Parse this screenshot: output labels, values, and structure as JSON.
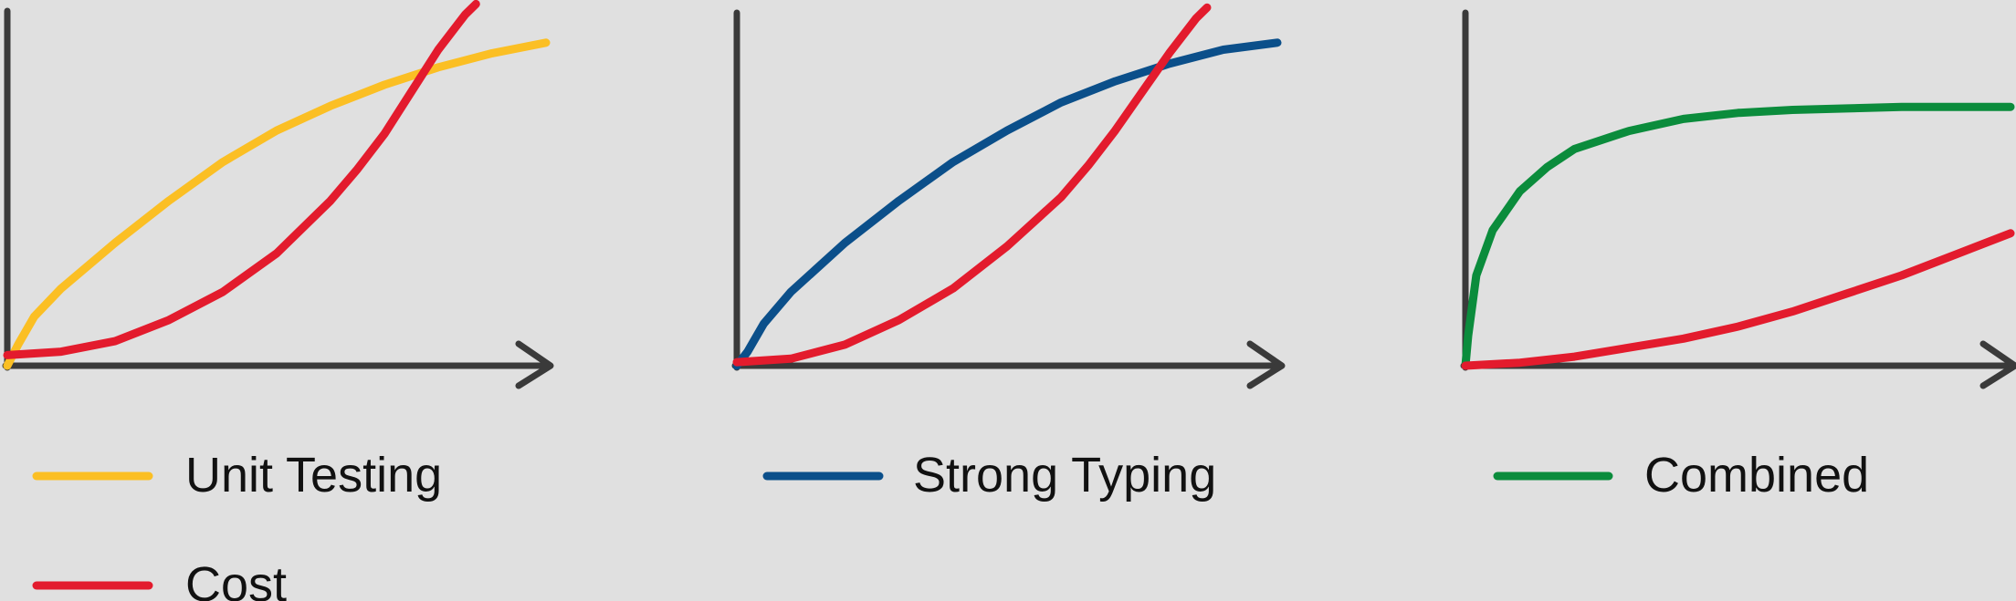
{
  "chart_data": [
    {
      "type": "line",
      "xlim": [
        0,
        1
      ],
      "ylim": [
        0,
        1
      ],
      "grid": false,
      "axis_arrow": "x",
      "legend_placement": "below",
      "series": [
        {
          "name": "Unit Testing",
          "color": "#fbbf24",
          "x": [
            0,
            0.02,
            0.05,
            0.1,
            0.2,
            0.3,
            0.4,
            0.5,
            0.6,
            0.7,
            0.8,
            0.9,
            1.0
          ],
          "y": [
            0.0,
            0.06,
            0.14,
            0.22,
            0.35,
            0.47,
            0.58,
            0.67,
            0.74,
            0.8,
            0.85,
            0.89,
            0.92
          ]
        },
        {
          "name": "Cost",
          "color": "#e31b2d",
          "x": [
            0,
            0.1,
            0.2,
            0.3,
            0.4,
            0.5,
            0.6,
            0.65,
            0.7,
            0.75,
            0.8,
            0.85,
            0.87
          ],
          "y": [
            0.03,
            0.04,
            0.07,
            0.13,
            0.21,
            0.32,
            0.47,
            0.56,
            0.66,
            0.78,
            0.9,
            1.0,
            1.03
          ]
        }
      ]
    },
    {
      "type": "line",
      "xlim": [
        0,
        1
      ],
      "ylim": [
        0,
        1
      ],
      "grid": false,
      "axis_arrow": "x",
      "legend_placement": "below",
      "series": [
        {
          "name": "Strong Typing",
          "color": "#0b4f8a",
          "x": [
            0,
            0.02,
            0.05,
            0.1,
            0.2,
            0.3,
            0.4,
            0.5,
            0.6,
            0.7,
            0.8,
            0.9,
            1.0
          ],
          "y": [
            0.0,
            0.04,
            0.12,
            0.21,
            0.35,
            0.47,
            0.58,
            0.67,
            0.75,
            0.81,
            0.86,
            0.9,
            0.92
          ]
        },
        {
          "name": "Cost",
          "color": "#e31b2d",
          "x": [
            0,
            0.1,
            0.2,
            0.3,
            0.4,
            0.5,
            0.6,
            0.65,
            0.7,
            0.75,
            0.8,
            0.85,
            0.87
          ],
          "y": [
            0.01,
            0.02,
            0.06,
            0.13,
            0.22,
            0.34,
            0.48,
            0.57,
            0.67,
            0.78,
            0.89,
            0.99,
            1.02
          ]
        }
      ]
    },
    {
      "type": "line",
      "xlim": [
        0,
        1
      ],
      "ylim": [
        0,
        1
      ],
      "grid": false,
      "axis_arrow": "x",
      "legend_placement": "below",
      "series": [
        {
          "name": "Combined",
          "color": "#0b8c3c",
          "x": [
            0,
            0.005,
            0.02,
            0.05,
            0.1,
            0.15,
            0.2,
            0.3,
            0.4,
            0.5,
            0.6,
            0.7,
            0.8,
            0.9,
            1.0
          ],
          "y": [
            0.0,
            0.1,
            0.3,
            0.45,
            0.58,
            0.66,
            0.72,
            0.78,
            0.82,
            0.84,
            0.85,
            0.855,
            0.86,
            0.86,
            0.86
          ]
        },
        {
          "name": "Cost",
          "color": "#e31b2d",
          "x": [
            0,
            0.1,
            0.2,
            0.3,
            0.4,
            0.5,
            0.6,
            0.7,
            0.8,
            0.9,
            1.0
          ],
          "y": [
            0.0,
            0.01,
            0.03,
            0.06,
            0.09,
            0.13,
            0.18,
            0.24,
            0.3,
            0.37,
            0.44
          ]
        }
      ]
    }
  ]
}
